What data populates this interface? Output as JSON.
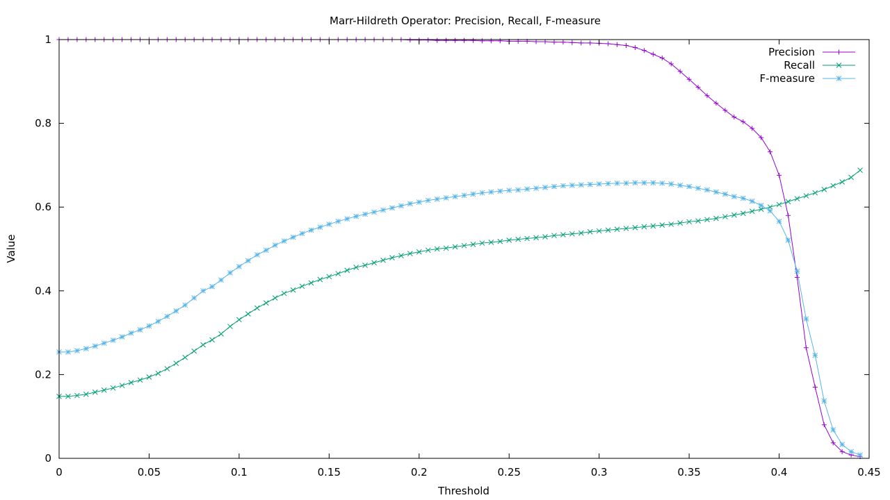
{
  "chart_data": {
    "type": "line",
    "title": "Marr-Hildreth Operator: Precision, Recall, F-measure",
    "xlabel": "Threshold",
    "ylabel": "Value",
    "xlim": [
      0,
      0.45
    ],
    "ylim": [
      0,
      1
    ],
    "xticks": [
      0,
      0.05,
      0.1,
      0.15,
      0.2,
      0.25,
      0.3,
      0.35,
      0.4,
      0.45
    ],
    "xtick_labels": [
      "0",
      "0.05",
      "0.1",
      "0.15",
      "0.2",
      "0.25",
      "0.3",
      "0.35",
      "0.4",
      "0.45"
    ],
    "yticks": [
      0,
      0.2,
      0.4,
      0.6,
      0.8,
      1
    ],
    "ytick_labels": [
      "0",
      "0.2",
      "0.4",
      "0.6",
      "0.8",
      "1"
    ],
    "grid": false,
    "legend_position": "top-right",
    "x": [
      0,
      0.005,
      0.01,
      0.015,
      0.02,
      0.025,
      0.03,
      0.035,
      0.04,
      0.045,
      0.05,
      0.055,
      0.06,
      0.065,
      0.07,
      0.075,
      0.08,
      0.085,
      0.09,
      0.095,
      0.1,
      0.105,
      0.11,
      0.115,
      0.12,
      0.125,
      0.13,
      0.135,
      0.14,
      0.145,
      0.15,
      0.155,
      0.16,
      0.165,
      0.17,
      0.175,
      0.18,
      0.185,
      0.19,
      0.195,
      0.2,
      0.205,
      0.21,
      0.215,
      0.22,
      0.225,
      0.23,
      0.235,
      0.24,
      0.245,
      0.25,
      0.255,
      0.26,
      0.265,
      0.27,
      0.275,
      0.28,
      0.285,
      0.29,
      0.295,
      0.3,
      0.305,
      0.31,
      0.315,
      0.32,
      0.325,
      0.33,
      0.335,
      0.34,
      0.345,
      0.35,
      0.355,
      0.36,
      0.365,
      0.37,
      0.375,
      0.38,
      0.385,
      0.39,
      0.395,
      0.4,
      0.405,
      0.41,
      0.415,
      0.42,
      0.425,
      0.43,
      0.435,
      0.44,
      0.445
    ],
    "series": [
      {
        "name": "Precision",
        "color": "#9400d3",
        "marker": "plus",
        "values": [
          1,
          1,
          1,
          1,
          1,
          1,
          1,
          1,
          1,
          1,
          1,
          1,
          1,
          1,
          1,
          1,
          1,
          1,
          1,
          1,
          1,
          1,
          1,
          1,
          1,
          1,
          1,
          1,
          1,
          1,
          1,
          1,
          1,
          1,
          1,
          1,
          1,
          1,
          1,
          0.999,
          0.999,
          0.999,
          0.998,
          0.998,
          0.998,
          0.998,
          0.998,
          0.997,
          0.997,
          0.997,
          0.996,
          0.996,
          0.996,
          0.995,
          0.995,
          0.994,
          0.994,
          0.993,
          0.992,
          0.992,
          0.991,
          0.99,
          0.988,
          0.986,
          0.981,
          0.974,
          0.965,
          0.956,
          0.942,
          0.924,
          0.905,
          0.886,
          0.866,
          0.848,
          0.831,
          0.815,
          0.804,
          0.788,
          0.766,
          0.732,
          0.676,
          0.58,
          0.432,
          0.264,
          0.17,
          0.08,
          0.037,
          0.016,
          0.008,
          0.004
        ]
      },
      {
        "name": "Recall",
        "color": "#009e73",
        "marker": "cross",
        "values": [
          0.148,
          0.148,
          0.15,
          0.153,
          0.158,
          0.163,
          0.168,
          0.174,
          0.181,
          0.187,
          0.194,
          0.203,
          0.214,
          0.227,
          0.241,
          0.256,
          0.271,
          0.283,
          0.297,
          0.315,
          0.331,
          0.345,
          0.359,
          0.371,
          0.383,
          0.394,
          0.402,
          0.411,
          0.419,
          0.427,
          0.434,
          0.441,
          0.449,
          0.456,
          0.461,
          0.467,
          0.473,
          0.479,
          0.484,
          0.489,
          0.493,
          0.497,
          0.5,
          0.502,
          0.505,
          0.508,
          0.511,
          0.514,
          0.516,
          0.518,
          0.521,
          0.523,
          0.525,
          0.527,
          0.529,
          0.532,
          0.534,
          0.536,
          0.538,
          0.541,
          0.543,
          0.545,
          0.547,
          0.549,
          0.551,
          0.553,
          0.555,
          0.557,
          0.559,
          0.562,
          0.565,
          0.567,
          0.57,
          0.573,
          0.577,
          0.581,
          0.585,
          0.59,
          0.595,
          0.6,
          0.606,
          0.613,
          0.62,
          0.627,
          0.634,
          0.642,
          0.651,
          0.66,
          0.671,
          0.688
        ]
      },
      {
        "name": "F-measure",
        "color": "#56b4e9",
        "marker": "star",
        "values": [
          0.254,
          0.254,
          0.257,
          0.262,
          0.268,
          0.275,
          0.282,
          0.29,
          0.299,
          0.307,
          0.316,
          0.327,
          0.339,
          0.352,
          0.366,
          0.383,
          0.4,
          0.41,
          0.426,
          0.443,
          0.458,
          0.472,
          0.486,
          0.497,
          0.509,
          0.519,
          0.528,
          0.537,
          0.545,
          0.552,
          0.559,
          0.566,
          0.572,
          0.578,
          0.583,
          0.588,
          0.593,
          0.598,
          0.603,
          0.608,
          0.612,
          0.616,
          0.619,
          0.622,
          0.625,
          0.628,
          0.631,
          0.634,
          0.636,
          0.638,
          0.64,
          0.641,
          0.643,
          0.645,
          0.647,
          0.649,
          0.651,
          0.652,
          0.653,
          0.654,
          0.655,
          0.656,
          0.657,
          0.657,
          0.658,
          0.658,
          0.658,
          0.657,
          0.655,
          0.652,
          0.649,
          0.645,
          0.641,
          0.636,
          0.631,
          0.625,
          0.621,
          0.614,
          0.604,
          0.591,
          0.566,
          0.521,
          0.447,
          0.333,
          0.246,
          0.137,
          0.068,
          0.033,
          0.016,
          0.008
        ]
      }
    ]
  }
}
